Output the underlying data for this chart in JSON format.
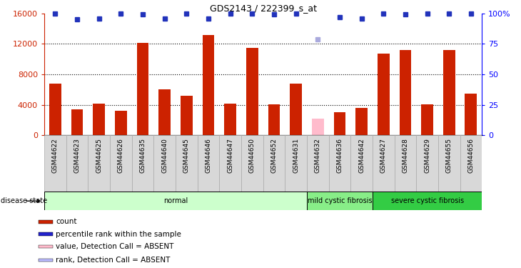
{
  "title": "GDS2143 / 222399_s_at",
  "samples": [
    "GSM44622",
    "GSM44623",
    "GSM44625",
    "GSM44626",
    "GSM44635",
    "GSM44640",
    "GSM44645",
    "GSM44646",
    "GSM44647",
    "GSM44650",
    "GSM44652",
    "GSM44631",
    "GSM44632",
    "GSM44636",
    "GSM44642",
    "GSM44627",
    "GSM44628",
    "GSM44629",
    "GSM44655",
    "GSM44656"
  ],
  "bar_values": [
    6800,
    3400,
    4200,
    3200,
    12100,
    6000,
    5200,
    13200,
    4200,
    11500,
    4100,
    6800,
    2200,
    3000,
    3600,
    10700,
    11200,
    4100,
    11200,
    5500
  ],
  "bar_colors": [
    "#cc2200",
    "#cc2200",
    "#cc2200",
    "#cc2200",
    "#cc2200",
    "#cc2200",
    "#cc2200",
    "#cc2200",
    "#cc2200",
    "#cc2200",
    "#cc2200",
    "#cc2200",
    "#ffbbcc",
    "#cc2200",
    "#cc2200",
    "#cc2200",
    "#cc2200",
    "#cc2200",
    "#cc2200",
    "#cc2200"
  ],
  "rank_values": [
    100,
    95,
    96,
    100,
    99,
    96,
    100,
    96,
    100,
    100,
    99,
    100,
    79,
    97,
    96,
    100,
    99,
    100,
    100,
    100
  ],
  "rank_absent": [
    false,
    false,
    false,
    false,
    false,
    false,
    false,
    false,
    false,
    false,
    false,
    false,
    true,
    false,
    false,
    false,
    false,
    false,
    false,
    false
  ],
  "ylim_left": [
    0,
    16000
  ],
  "ylim_right": [
    0,
    100
  ],
  "yticks_left": [
    0,
    4000,
    8000,
    12000,
    16000
  ],
  "yticks_right": [
    0,
    25,
    50,
    75,
    100
  ],
  "yticklabels_right": [
    "0",
    "25",
    "50",
    "75",
    "100%"
  ],
  "group_starts": [
    0,
    12,
    15
  ],
  "group_ends": [
    12,
    15,
    20
  ],
  "group_labels": [
    "normal",
    "mild cystic fibrosis",
    "severe cystic fibrosis"
  ],
  "group_colors": [
    "#ccffcc",
    "#88ee88",
    "#33cc44"
  ],
  "legend_items": [
    {
      "color": "#cc2200",
      "label": "count"
    },
    {
      "color": "#2222cc",
      "label": "percentile rank within the sample"
    },
    {
      "color": "#ffbbcc",
      "label": "value, Detection Call = ABSENT"
    },
    {
      "color": "#bbbbff",
      "label": "rank, Detection Call = ABSENT"
    }
  ],
  "dot_color_present": "#2233bb",
  "dot_color_absent": "#aaaadd",
  "bar_color_absent": "#ffbbcc"
}
